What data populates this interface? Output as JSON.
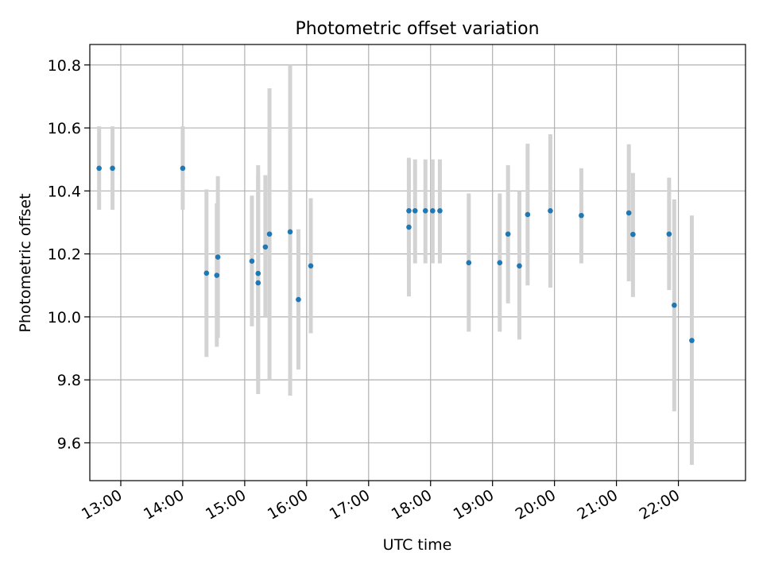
{
  "chart_data": {
    "type": "scatter",
    "title": "Photometric offset variation",
    "xlabel": "UTC time",
    "ylabel": "Photometric offset",
    "grid": true,
    "x_axis_kind": "time",
    "xlim": [
      "12:30",
      "23:05"
    ],
    "ylim": [
      9.48,
      10.865
    ],
    "xticks": [
      "13:00",
      "14:00",
      "15:00",
      "16:00",
      "17:00",
      "18:00",
      "19:00",
      "20:00",
      "21:00",
      "22:00"
    ],
    "yticks": [
      9.6,
      9.8,
      10.0,
      10.2,
      10.4,
      10.6,
      10.8
    ],
    "ytick_labels": [
      "9.6",
      "9.8",
      "10.0",
      "10.2",
      "10.4",
      "10.6",
      "10.8"
    ],
    "series": [
      {
        "color": "#1f77b4",
        "errorbar_color": "#d3d3d3",
        "points": [
          {
            "x": "12:39",
            "y": 10.472,
            "ylow": 10.34,
            "yhigh": 10.605
          },
          {
            "x": "12:52",
            "y": 10.472,
            "ylow": 10.34,
            "yhigh": 10.605
          },
          {
            "x": "14:00",
            "y": 10.472,
            "ylow": 10.34,
            "yhigh": 10.605
          },
          {
            "x": "14:23",
            "y": 10.139,
            "ylow": 9.873,
            "yhigh": 10.405
          },
          {
            "x": "14:33",
            "y": 10.132,
            "ylow": 9.905,
            "yhigh": 10.36
          },
          {
            "x": "14:34",
            "y": 10.19,
            "ylow": 9.933,
            "yhigh": 10.447
          },
          {
            "x": "15:07",
            "y": 10.177,
            "ylow": 9.97,
            "yhigh": 10.385
          },
          {
            "x": "15:13",
            "y": 10.138,
            "ylow": 9.795,
            "yhigh": 10.482
          },
          {
            "x": "15:13",
            "y": 10.108,
            "ylow": 9.755,
            "yhigh": 10.45
          },
          {
            "x": "15:20",
            "y": 10.222,
            "ylow": 10.0,
            "yhigh": 10.45
          },
          {
            "x": "15:24",
            "y": 10.263,
            "ylow": 9.8,
            "yhigh": 10.726
          },
          {
            "x": "15:44",
            "y": 10.27,
            "ylow": 9.75,
            "yhigh": 10.8
          },
          {
            "x": "15:52",
            "y": 10.055,
            "ylow": 9.833,
            "yhigh": 10.278
          },
          {
            "x": "16:04",
            "y": 10.162,
            "ylow": 9.948,
            "yhigh": 10.377
          },
          {
            "x": "17:39",
            "y": 10.285,
            "ylow": 10.065,
            "yhigh": 10.505
          },
          {
            "x": "17:39",
            "y": 10.337,
            "ylow": 10.17,
            "yhigh": 10.505
          },
          {
            "x": "17:45",
            "y": 10.337,
            "ylow": 10.17,
            "yhigh": 10.5
          },
          {
            "x": "17:55",
            "y": 10.337,
            "ylow": 10.17,
            "yhigh": 10.5
          },
          {
            "x": "18:02",
            "y": 10.337,
            "ylow": 10.17,
            "yhigh": 10.5
          },
          {
            "x": "18:09",
            "y": 10.337,
            "ylow": 10.17,
            "yhigh": 10.5
          },
          {
            "x": "18:37",
            "y": 10.172,
            "ylow": 9.953,
            "yhigh": 10.392
          },
          {
            "x": "19:07",
            "y": 10.172,
            "ylow": 9.953,
            "yhigh": 10.392
          },
          {
            "x": "19:15",
            "y": 10.263,
            "ylow": 10.043,
            "yhigh": 10.482
          },
          {
            "x": "19:26",
            "y": 10.162,
            "ylow": 9.928,
            "yhigh": 10.4
          },
          {
            "x": "19:34",
            "y": 10.325,
            "ylow": 10.1,
            "yhigh": 10.55
          },
          {
            "x": "19:56",
            "y": 10.337,
            "ylow": 10.093,
            "yhigh": 10.58
          },
          {
            "x": "20:26",
            "y": 10.322,
            "ylow": 10.17,
            "yhigh": 10.472
          },
          {
            "x": "21:12",
            "y": 10.33,
            "ylow": 10.113,
            "yhigh": 10.548
          },
          {
            "x": "21:16",
            "y": 10.262,
            "ylow": 10.063,
            "yhigh": 10.457
          },
          {
            "x": "21:51",
            "y": 10.263,
            "ylow": 10.085,
            "yhigh": 10.442
          },
          {
            "x": "21:56",
            "y": 10.037,
            "ylow": 9.7,
            "yhigh": 10.373
          },
          {
            "x": "22:13",
            "y": 9.925,
            "ylow": 9.53,
            "yhigh": 10.322
          }
        ]
      }
    ]
  }
}
